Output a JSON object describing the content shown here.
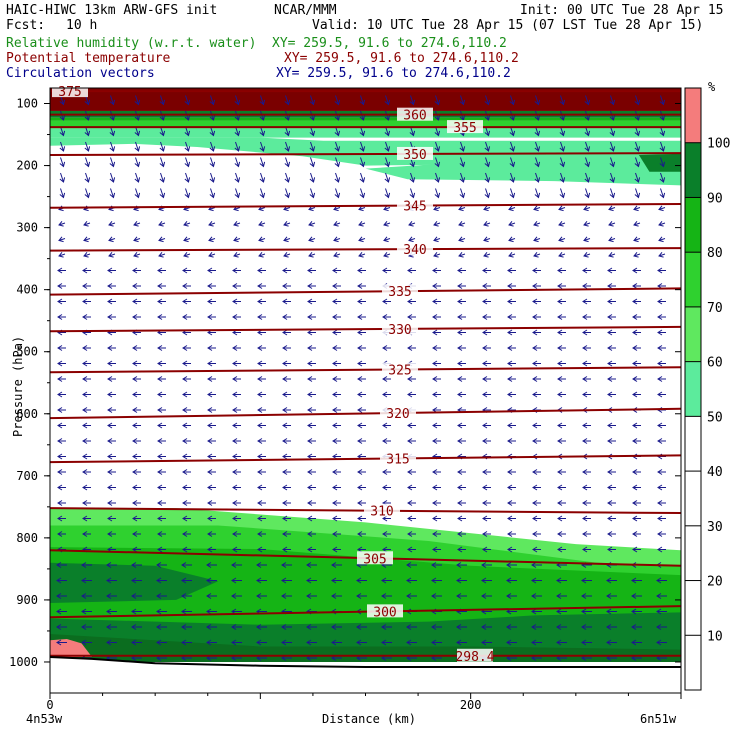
{
  "header": {
    "title_left": "HAIC-HIWC 13km ARW-GFS init",
    "org": "NCAR/MMM",
    "init": "Init: 00 UTC Tue 28 Apr 15",
    "fcst_label": "Fcst:",
    "fcst_value": "10 h",
    "valid": "Valid: 10 UTC Tue 28 Apr 15 (07 LST Tue 28 Apr 15)"
  },
  "fields": [
    {
      "name": "Relative humidity (w.r.t. water)",
      "xy": "XY= 259.5, 91.6 to 274.6,110.2",
      "color": "#1a8f1a"
    },
    {
      "name": "Potential temperature",
      "xy": "XY= 259.5, 91.6 to 274.6,110.2",
      "color": "#8b0000"
    },
    {
      "name": "Circulation vectors",
      "xy": "XY= 259.5, 91.6 to 274.6,110.2",
      "color": "#00008b"
    }
  ],
  "axes": {
    "ylabel": "Pressure (hPa)",
    "xlabel": "Distance (km)",
    "left_end": "4n53w",
    "right_end": "6n51w",
    "colorbar_unit": "%"
  },
  "chart_data": {
    "type": "heatmap",
    "x": {
      "label": "Distance (km)",
      "range": [
        0,
        300
      ],
      "ticks": [
        0,
        200
      ]
    },
    "y": {
      "label": "Pressure (hPa)",
      "range": [
        1050,
        75
      ],
      "scale": "linear",
      "ticks": [
        100,
        200,
        300,
        400,
        500,
        600,
        700,
        800,
        900,
        1000
      ]
    },
    "colorbar": {
      "unit": "%",
      "ticks": [
        10,
        20,
        30,
        40,
        50,
        60,
        70,
        80,
        90,
        100
      ],
      "levels": [
        {
          "from": 50,
          "to": 60,
          "color": "#5ceb9c"
        },
        {
          "from": 60,
          "to": 70,
          "color": "#5fe85f"
        },
        {
          "from": 70,
          "to": 80,
          "color": "#2fd12f"
        },
        {
          "from": 80,
          "to": 90,
          "color": "#15b415"
        },
        {
          "from": 90,
          "to": 100,
          "color": "#0a7f2a"
        },
        {
          "from": 100,
          "to": 110,
          "color": "#f47c7c"
        }
      ]
    },
    "theta_contours": [
      {
        "label": "375",
        "p": [
          80,
          80
        ]
      },
      {
        "label": "360",
        "p": [
          118,
          118
        ]
      },
      {
        "label": "355",
        "p": [
          138,
          138
        ]
      },
      {
        "label": "350",
        "p": [
          183,
          180
        ]
      },
      {
        "label": "345",
        "p": [
          268,
          262
        ]
      },
      {
        "label": "340",
        "p": [
          337,
          333
        ]
      },
      {
        "label": "335",
        "p": [
          408,
          398
        ]
      },
      {
        "label": "330",
        "p": [
          467,
          460
        ]
      },
      {
        "label": "325",
        "p": [
          533,
          525
        ]
      },
      {
        "label": "320",
        "p": [
          607,
          592
        ]
      },
      {
        "label": "315",
        "p": [
          678,
          667
        ]
      },
      {
        "label": "310",
        "p": [
          752,
          760
        ]
      },
      {
        "label": "305",
        "p": [
          820,
          845
        ]
      },
      {
        "label": "300",
        "p": [
          928,
          910
        ]
      },
      {
        "label": "298.4",
        "p": [
          990,
          990
        ]
      }
    ],
    "terrain": {
      "x": [
        0,
        20,
        50,
        100,
        150,
        200,
        250,
        300
      ],
      "p": [
        992,
        995,
        1002,
        1006,
        1008,
        1008,
        1008,
        1008
      ]
    },
    "colors": {
      "theta": "#8b0000",
      "vectors": "#1a1a8c",
      "terrain": "#000000"
    }
  }
}
